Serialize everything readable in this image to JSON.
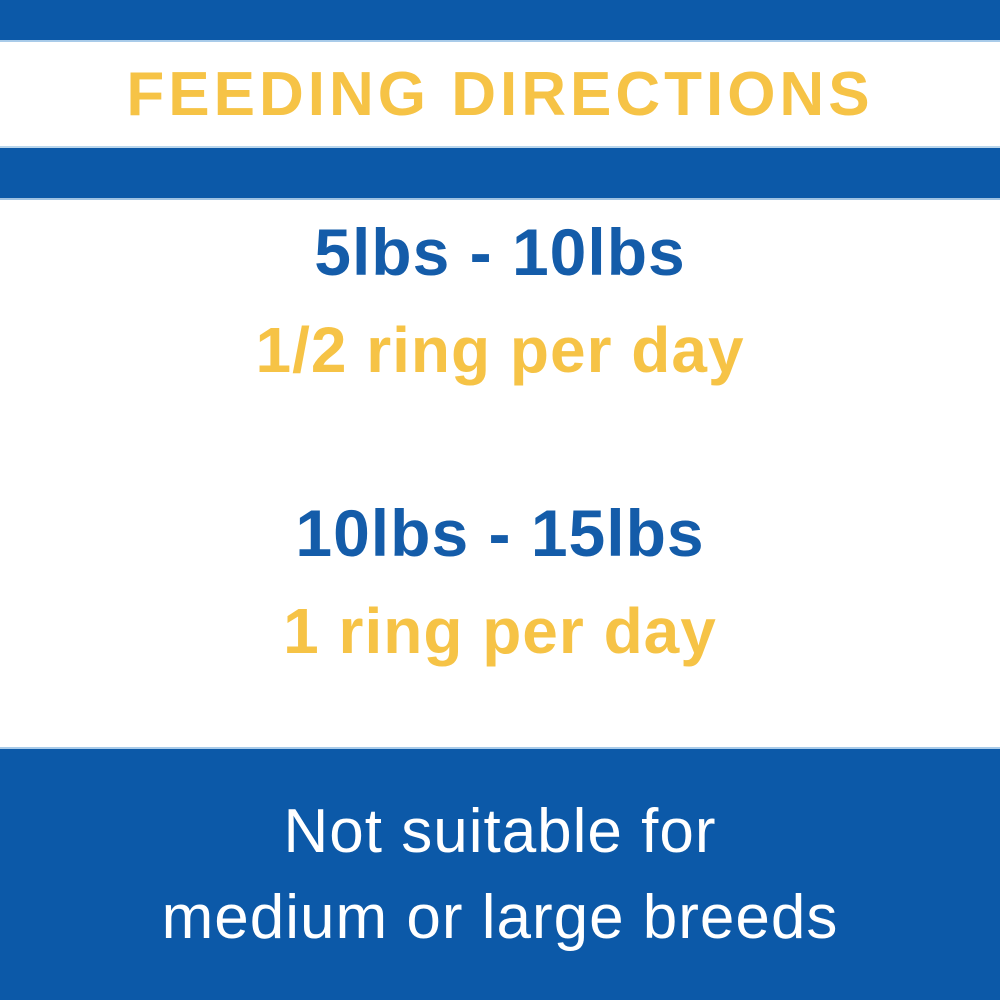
{
  "title": "FEEDING DIRECTIONS",
  "feeding": {
    "rows": [
      {
        "weight_range": "5lbs - 10lbs",
        "amount": "1/2 ring per day"
      },
      {
        "weight_range": "10lbs - 15lbs",
        "amount": "1 ring per day"
      }
    ]
  },
  "warning": {
    "line1": "Not suitable for",
    "line2": "medium or large breeds"
  },
  "colors": {
    "brand_blue": "#0C59A8",
    "text_blue": "#145CA9",
    "accent_yellow": "#F6C346",
    "warning_text": "#FFFFFF",
    "background": "#FFFFFF"
  }
}
